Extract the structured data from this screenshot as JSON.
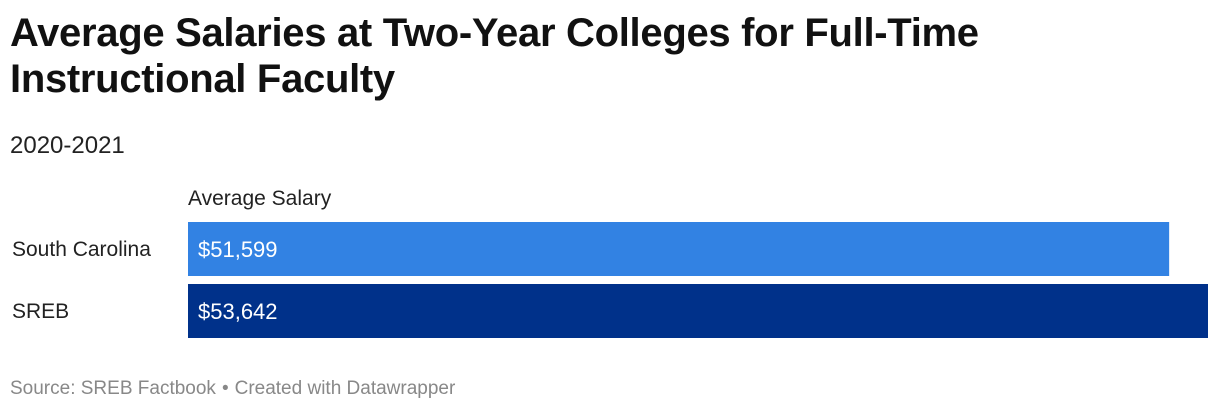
{
  "title": "Average Salaries at Two-Year Colleges for Full-Time Instructional Faculty",
  "subtitle": "2020-2021",
  "footer": {
    "source": "Source: SREB Factbook",
    "separator": "•",
    "credit": "Created with Datawrapper"
  },
  "chart_data": {
    "type": "bar",
    "orientation": "horizontal",
    "column_header": "Average Salary",
    "categories": [
      "South Carolina",
      "SREB"
    ],
    "values": [
      51599,
      53642
    ],
    "value_labels": [
      "$51,599",
      "$53,642"
    ],
    "xlim": [
      0,
      53642
    ],
    "grid": false,
    "colors": [
      "#3282e3",
      "#00318a"
    ]
  }
}
